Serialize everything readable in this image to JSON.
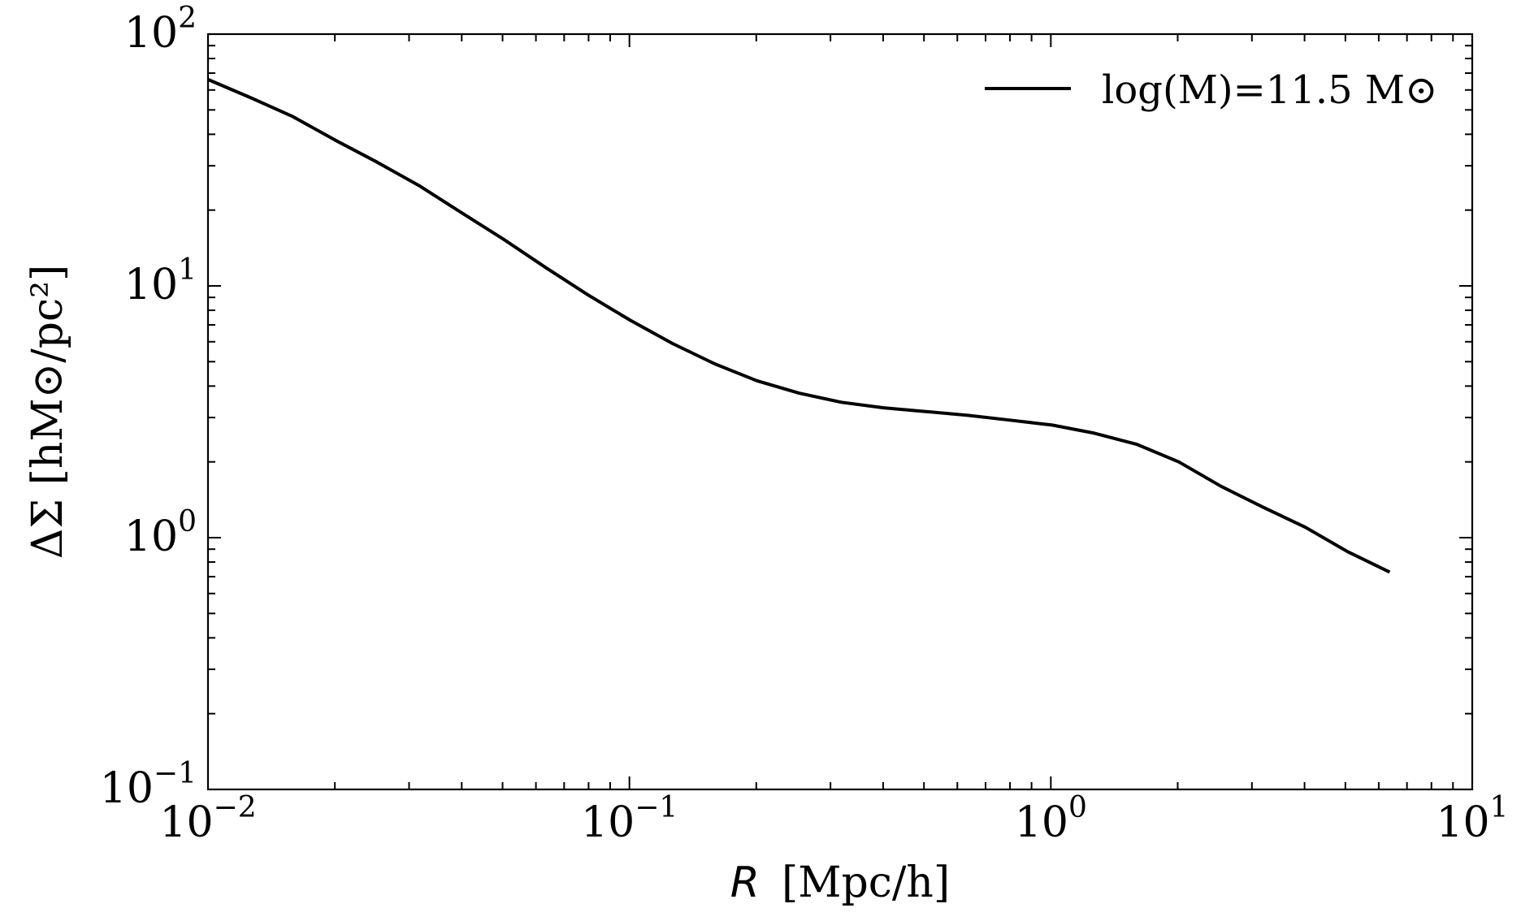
{
  "chart_data": {
    "type": "line",
    "xscale": "log",
    "yscale": "log",
    "xlim": [
      0.01,
      10
    ],
    "ylim": [
      0.1,
      100
    ],
    "xlabel_symbol": "R",
    "xlabel_unit": "[Mpc/h]",
    "ylabel": "ΔΣ [hM⊙/pc²]",
    "x_ticks": [
      {
        "base": "10",
        "exp": "−2",
        "value": 0.01
      },
      {
        "base": "10",
        "exp": "−1",
        "value": 0.1
      },
      {
        "base": "10",
        "exp": "0",
        "value": 1
      },
      {
        "base": "10",
        "exp": "1",
        "value": 10
      }
    ],
    "y_ticks": [
      {
        "base": "10",
        "exp": "−1",
        "value": 0.1
      },
      {
        "base": "10",
        "exp": "0",
        "value": 1
      },
      {
        "base": "10",
        "exp": "1",
        "value": 10
      },
      {
        "base": "10",
        "exp": "2",
        "value": 100
      }
    ],
    "legend": {
      "placement": "top-right",
      "label": "log(M)=11.5 M⊙"
    },
    "grid": false,
    "series": [
      {
        "name": "log(M)=11.5 M⊙",
        "color": "#000000",
        "x": [
          0.01,
          0.0126,
          0.0159,
          0.02,
          0.0252,
          0.0317,
          0.04,
          0.0503,
          0.0634,
          0.0798,
          0.1005,
          0.1266,
          0.1594,
          0.2007,
          0.2527,
          0.3183,
          0.4008,
          0.5047,
          0.6355,
          0.8002,
          1.0077,
          1.2689,
          1.5979,
          2.0121,
          2.5337,
          3.1905,
          4.0176,
          5.0591,
          6.3706
        ],
        "y": [
          66,
          56,
          47,
          38,
          31,
          25,
          19.5,
          15.3,
          11.8,
          9.2,
          7.3,
          5.9,
          4.9,
          4.2,
          3.75,
          3.45,
          3.28,
          3.17,
          3.06,
          2.93,
          2.8,
          2.6,
          2.35,
          2.0,
          1.6,
          1.32,
          1.1,
          0.88,
          0.73
        ]
      }
    ]
  }
}
